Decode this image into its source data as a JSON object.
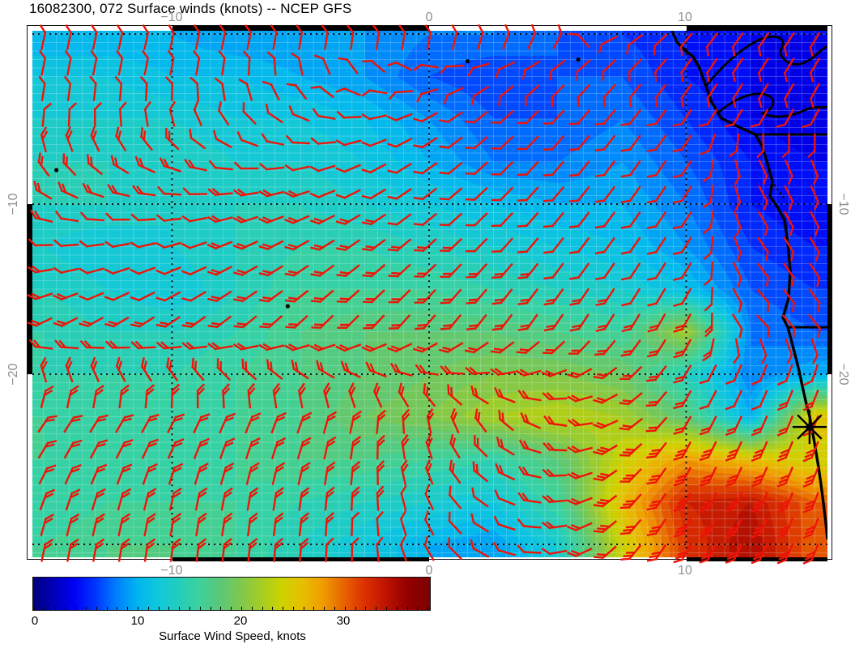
{
  "title": "16082300, 072 Surface winds (knots) -- NCEP GFS",
  "axes": {
    "top_ticks": [
      {
        "label": "−10",
        "lon": -10
      },
      {
        "label": "0",
        "lon": 0
      },
      {
        "label": "10",
        "lon": 10
      }
    ],
    "bottom_ticks": [
      {
        "label": "−10",
        "lon": -10
      },
      {
        "label": "0",
        "lon": 0
      },
      {
        "label": "10",
        "lon": 10
      }
    ],
    "left_ticks": [
      {
        "label": "−10",
        "lat": -10
      },
      {
        "label": "−20",
        "lat": -20
      }
    ],
    "right_ticks": [
      {
        "label": "−10",
        "lat": -10
      },
      {
        "label": "−20",
        "lat": -20
      }
    ],
    "lon_range": [
      -15.4,
      15.5
    ],
    "lat_range": [
      0.2,
      -30.9
    ],
    "major_grid_lons": [
      -10,
      0,
      10
    ],
    "major_grid_lats": [
      0,
      -10,
      -20,
      -30
    ],
    "graticule_step_deg": 0.5
  },
  "colorbar": {
    "caption": "Surface Wind Speed, knots",
    "tick_labels": [
      "0",
      "10",
      "20",
      "30"
    ],
    "tick_values": [
      0,
      10,
      20,
      30
    ],
    "min": 0,
    "max": 38.3
  },
  "chart_data": {
    "type": "heatmap",
    "subtype": "wind-field-map-with-barbs",
    "title": "16082300, 072 Surface winds (knots) -- NCEP GFS",
    "model": "NCEP GFS",
    "run": "16082300",
    "forecast_hour": "072",
    "variable": "Surface winds",
    "units": "knots",
    "legend_position": "bottom",
    "grid_on": true,
    "lons": [
      -15,
      -12.5,
      -10,
      -7.5,
      -5,
      -2.5,
      0,
      2.5,
      5,
      7.5,
      10,
      12.5,
      15
    ],
    "lats": [
      0,
      -2.5,
      -5,
      -7.5,
      -10,
      -12.5,
      -15,
      -17.5,
      -20,
      -22.5,
      -25,
      -27.5,
      -30
    ],
    "speed_grid": [
      [
        10,
        10,
        10,
        9,
        9,
        9,
        8,
        8,
        7,
        6,
        5,
        4,
        4
      ],
      [
        12,
        12,
        11,
        11,
        10,
        9,
        7,
        6,
        7,
        7,
        5,
        4,
        3
      ],
      [
        13,
        13,
        13,
        12,
        12,
        11,
        9,
        7,
        7,
        8,
        6,
        4,
        3
      ],
      [
        14,
        14,
        14,
        13,
        13,
        12,
        10,
        8,
        8,
        9,
        7,
        5,
        4
      ],
      [
        14,
        14,
        13,
        14,
        14,
        13,
        12,
        11,
        10,
        10,
        8,
        5,
        4
      ],
      [
        13,
        12,
        13,
        14,
        15,
        15,
        14,
        13,
        12,
        11,
        9,
        6,
        5
      ],
      [
        14,
        13,
        12,
        14,
        16,
        16,
        16,
        15,
        14,
        13,
        11,
        7,
        6
      ],
      [
        15,
        14,
        14,
        15,
        17,
        18,
        18,
        18,
        17,
        16,
        22,
        8,
        7
      ],
      [
        15,
        15,
        15,
        16,
        17,
        18,
        19,
        20,
        20,
        19,
        14,
        8,
        10
      ],
      [
        16,
        15,
        15,
        16,
        17,
        19,
        20,
        22,
        23,
        22,
        18,
        10,
        26
      ],
      [
        16,
        16,
        15,
        16,
        17,
        17,
        16,
        15,
        18,
        24,
        28,
        26,
        24
      ],
      [
        15,
        16,
        16,
        16,
        15,
        14,
        13,
        12,
        16,
        26,
        33,
        34,
        30
      ],
      [
        16,
        17,
        17,
        16,
        14,
        12,
        10,
        9,
        13,
        24,
        32,
        35,
        30
      ]
    ],
    "direction_grid": [
      [
        192,
        192,
        192,
        192,
        194,
        196,
        200,
        205,
        210,
        60,
        40,
        35,
        32
      ],
      [
        190,
        190,
        190,
        185,
        160,
        120,
        80,
        55,
        45,
        40,
        35,
        32,
        30
      ],
      [
        185,
        178,
        165,
        140,
        110,
        80,
        60,
        48,
        42,
        38,
        34,
        30,
        28
      ],
      [
        150,
        130,
        112,
        95,
        80,
        65,
        55,
        46,
        40,
        36,
        33,
        335,
        340
      ],
      [
        112,
        98,
        88,
        78,
        70,
        60,
        52,
        45,
        40,
        36,
        33,
        330,
        335
      ],
      [
        88,
        80,
        74,
        66,
        60,
        54,
        48,
        43,
        38,
        35,
        32,
        325,
        330
      ],
      [
        74,
        68,
        63,
        58,
        53,
        48,
        44,
        40,
        36,
        33,
        30,
        320,
        325
      ],
      [
        62,
        58,
        54,
        50,
        46,
        43,
        40,
        37,
        34,
        31,
        28,
        315,
        320
      ],
      [
        165,
        155,
        145,
        135,
        125,
        115,
        100,
        85,
        70,
        50,
        30,
        24,
        20
      ],
      [
        215,
        212,
        208,
        204,
        200,
        190,
        170,
        140,
        100,
        60,
        30,
        24,
        22
      ],
      [
        210,
        206,
        202,
        198,
        195,
        185,
        160,
        125,
        90,
        50,
        28,
        24,
        22
      ],
      [
        200,
        196,
        192,
        190,
        188,
        182,
        155,
        118,
        85,
        45,
        28,
        25,
        22
      ],
      [
        192,
        190,
        188,
        186,
        185,
        180,
        150,
        112,
        80,
        42,
        28,
        25,
        22
      ]
    ],
    "colormap_stops": [
      [
        0,
        "#00007d"
      ],
      [
        2,
        "#0000b9"
      ],
      [
        4,
        "#0000f5"
      ],
      [
        6,
        "#0037ff"
      ],
      [
        8,
        "#007dff"
      ],
      [
        10,
        "#00b4f0"
      ],
      [
        12,
        "#0fc8dc"
      ],
      [
        14,
        "#23cdbe"
      ],
      [
        16,
        "#3cd29b"
      ],
      [
        18,
        "#5ac878"
      ],
      [
        20,
        "#7dc850"
      ],
      [
        22,
        "#a5cd23"
      ],
      [
        24,
        "#cdd200"
      ],
      [
        26,
        "#e6be00"
      ],
      [
        28,
        "#f09b00"
      ],
      [
        30,
        "#e66400"
      ],
      [
        32,
        "#dc3000"
      ],
      [
        34,
        "#be1400"
      ],
      [
        36,
        "#960000"
      ],
      [
        38.3,
        "#7d0000"
      ]
    ],
    "barb_color": "#ee1407",
    "coast_color": "#000000",
    "landmarks": {
      "star_marker": {
        "lon": 14.8,
        "lat": -23.1
      },
      "islands": [
        {
          "lon": -14.5,
          "lat": -8.0
        },
        {
          "lon": -5.5,
          "lat": -16.0
        },
        {
          "lon": 5.8,
          "lat": -1.5
        },
        {
          "lon": 1.5,
          "lat": -1.6
        }
      ]
    }
  }
}
